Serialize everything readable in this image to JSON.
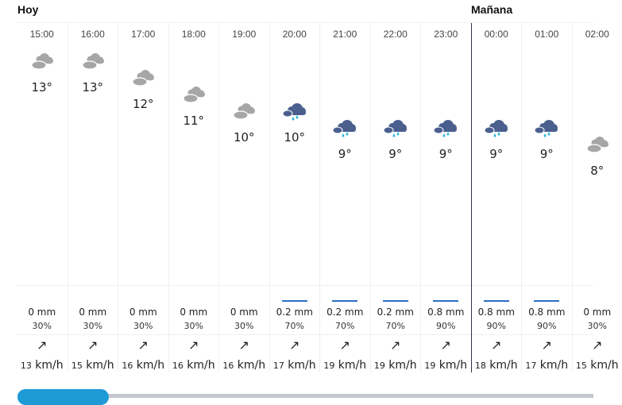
{
  "days": [
    {
      "label": "Hoy"
    },
    {
      "label": "Mañana"
    }
  ],
  "colors": {
    "cloud": "#a6a6a6",
    "rain_cloud": "#4a5f8e",
    "drops": "#2bb5d8",
    "rain_bar": "#2d6fc4",
    "scroll_thumb": "#1e9ad6"
  },
  "hours": [
    {
      "time": "15:00",
      "icon": "cloudy-icon",
      "temp": "13°",
      "t": 13,
      "rain": "0 mm",
      "prob": "30%",
      "wind_dir": "↗",
      "wind_speed": "13",
      "wind_unit": "km/h",
      "day": 0
    },
    {
      "time": "16:00",
      "icon": "cloudy-icon",
      "temp": "13°",
      "t": 13,
      "rain": "0 mm",
      "prob": "30%",
      "wind_dir": "↗",
      "wind_speed": "15",
      "wind_unit": "km/h",
      "day": 0
    },
    {
      "time": "17:00",
      "icon": "cloudy-icon",
      "temp": "12°",
      "t": 12,
      "rain": "0 mm",
      "prob": "30%",
      "wind_dir": "↗",
      "wind_speed": "16",
      "wind_unit": "km/h",
      "day": 0
    },
    {
      "time": "18:00",
      "icon": "cloudy-icon",
      "temp": "11°",
      "t": 11,
      "rain": "0 mm",
      "prob": "30%",
      "wind_dir": "↗",
      "wind_speed": "16",
      "wind_unit": "km/h",
      "day": 0
    },
    {
      "time": "19:00",
      "icon": "cloudy-icon",
      "temp": "10°",
      "t": 10,
      "rain": "0 mm",
      "prob": "30%",
      "wind_dir": "↗",
      "wind_speed": "16",
      "wind_unit": "km/h",
      "day": 0
    },
    {
      "time": "20:00",
      "icon": "rain-icon",
      "temp": "10°",
      "t": 10,
      "rain": "0.2 mm",
      "prob": "70%",
      "wind_dir": "↗",
      "wind_speed": "17",
      "wind_unit": "km/h",
      "day": 0
    },
    {
      "time": "21:00",
      "icon": "rain-icon",
      "temp": "9°",
      "t": 9,
      "rain": "0.2 mm",
      "prob": "70%",
      "wind_dir": "↗",
      "wind_speed": "19",
      "wind_unit": "km/h",
      "day": 0
    },
    {
      "time": "22:00",
      "icon": "rain-icon",
      "temp": "9°",
      "t": 9,
      "rain": "0.2 mm",
      "prob": "70%",
      "wind_dir": "↗",
      "wind_speed": "19",
      "wind_unit": "km/h",
      "day": 0
    },
    {
      "time": "23:00",
      "icon": "rain-icon",
      "temp": "9°",
      "t": 9,
      "rain": "0.8 mm",
      "prob": "90%",
      "wind_dir": "↗",
      "wind_speed": "19",
      "wind_unit": "km/h",
      "day": 0
    },
    {
      "time": "00:00",
      "icon": "rain-icon",
      "temp": "9°",
      "t": 9,
      "rain": "0.8 mm",
      "prob": "90%",
      "wind_dir": "↗",
      "wind_speed": "18",
      "wind_unit": "km/h",
      "day": 1
    },
    {
      "time": "01:00",
      "icon": "rain-icon",
      "temp": "9°",
      "t": 9,
      "rain": "0.8 mm",
      "prob": "90%",
      "wind_dir": "↗",
      "wind_speed": "17",
      "wind_unit": "km/h",
      "day": 1
    },
    {
      "time": "02:00",
      "icon": "cloudy-icon",
      "temp": "8°",
      "t": 8,
      "rain": "0 mm",
      "prob": "30%",
      "wind_dir": "↗",
      "wind_speed": "15",
      "wind_unit": "km/h",
      "day": 1
    }
  ],
  "scroll": {
    "position_fraction": 0
  }
}
